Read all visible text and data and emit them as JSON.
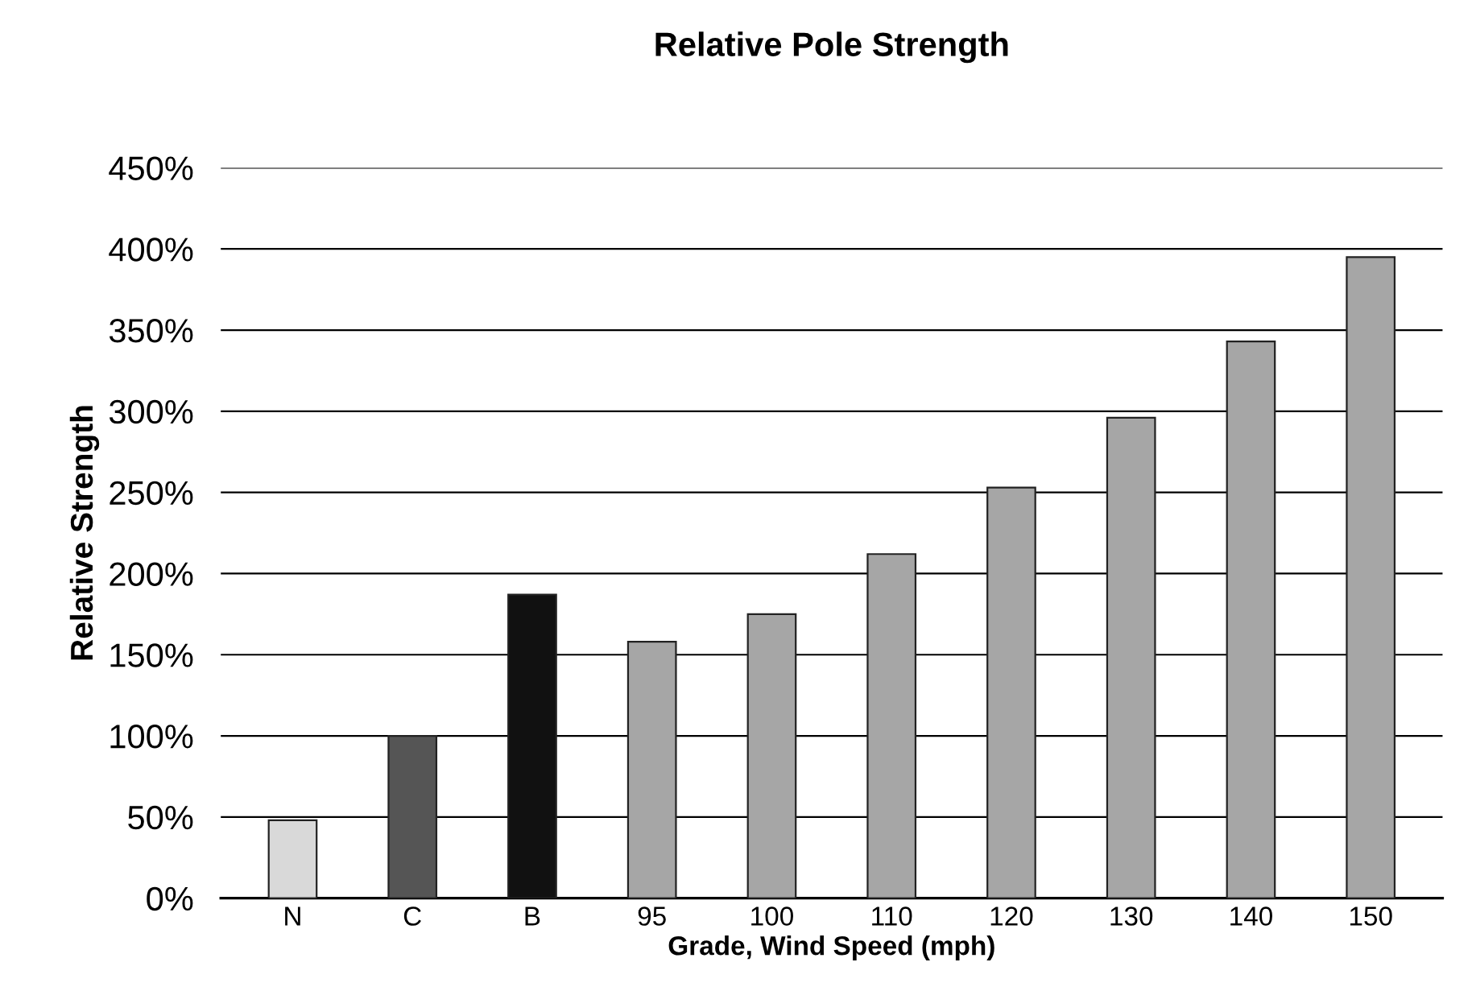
{
  "chart_data": {
    "type": "bar",
    "title": "Relative Pole Strength",
    "xlabel": "Grade, Wind Speed (mph)",
    "ylabel": "Relative Strength",
    "categories": [
      "N",
      "C",
      "B",
      "95",
      "100",
      "110",
      "120",
      "130",
      "140",
      "150"
    ],
    "values": [
      48,
      100,
      187,
      158,
      175,
      212,
      253,
      296,
      343,
      395
    ],
    "colors": [
      "#d9d9d9",
      "#555555",
      "#111111",
      "#a6a6a6",
      "#a6a6a6",
      "#a6a6a6",
      "#a6a6a6",
      "#a6a6a6",
      "#a6a6a6",
      "#a6a6a6"
    ],
    "ylim": [
      0,
      450
    ],
    "yticks": [
      {
        "value": 0,
        "label": "0%"
      },
      {
        "value": 50,
        "label": "50%"
      },
      {
        "value": 100,
        "label": "100%"
      },
      {
        "value": 150,
        "label": "150%"
      },
      {
        "value": 200,
        "label": "200%"
      },
      {
        "value": 250,
        "label": "250%"
      },
      {
        "value": 300,
        "label": "300%"
      },
      {
        "value": 350,
        "label": "350%"
      },
      {
        "value": 400,
        "label": "400%"
      },
      {
        "value": 450,
        "label": "450%"
      }
    ],
    "grid": "y"
  }
}
